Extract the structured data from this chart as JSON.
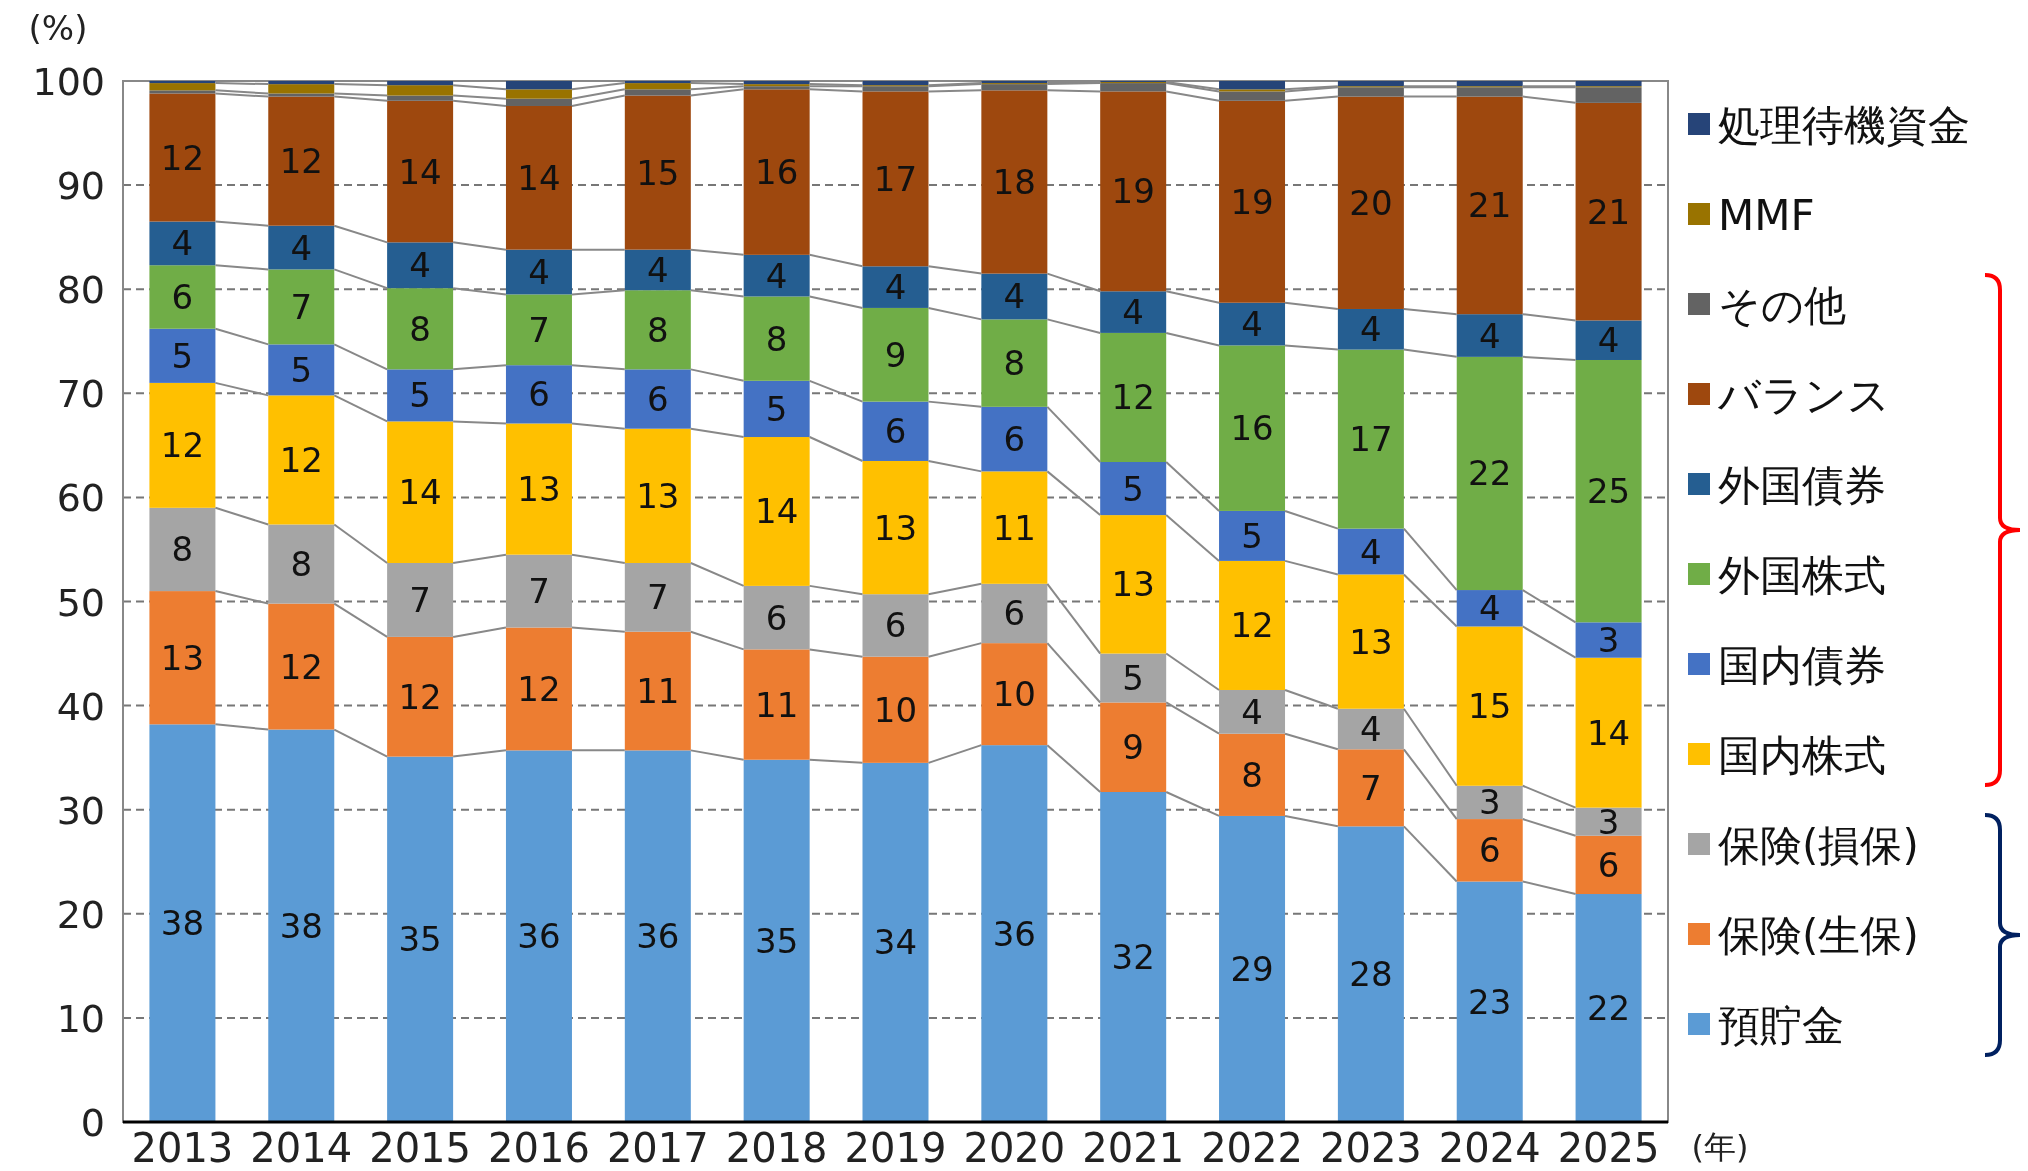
{
  "chart_data": {
    "type": "bar",
    "stacked": true,
    "ylabel": "(%)",
    "xlabel": "(年)",
    "ylim": [
      0,
      100
    ],
    "yticks": [
      0,
      10,
      20,
      30,
      40,
      50,
      60,
      70,
      80,
      90,
      100
    ],
    "grid": "y",
    "legend": "right",
    "categories": [
      "2013",
      "2014",
      "2015",
      "2016",
      "2017",
      "2018",
      "2019",
      "2020",
      "2021",
      "2022",
      "2023",
      "2024",
      "2025"
    ],
    "series": [
      {
        "name": "預貯金",
        "color": "#5b9bd5",
        "values": [
          38.2,
          37.7,
          35.1,
          35.7,
          35.7,
          34.8,
          34.5,
          36.2,
          31.7,
          29.4,
          28.4,
          23.1,
          21.9
        ],
        "value_labels": [
          "38",
          "38",
          "35",
          "36",
          "36",
          "35",
          "34",
          "36",
          "32",
          "29",
          "28",
          "23",
          "22"
        ]
      },
      {
        "name": "保険(生保)",
        "color": "#ed7d31",
        "values": [
          12.8,
          12.1,
          11.5,
          11.8,
          11.4,
          10.6,
          10.2,
          9.8,
          8.6,
          7.9,
          7.4,
          6.0,
          5.6
        ],
        "value_labels": [
          "13",
          "12",
          "12",
          "12",
          "11",
          "11",
          "10",
          "10",
          "9",
          "8",
          "7",
          "6",
          "6"
        ]
      },
      {
        "name": "保険(損保)",
        "color": "#a5a5a5",
        "values": [
          8.0,
          7.6,
          7.1,
          7.0,
          6.6,
          6.1,
          6.0,
          5.7,
          4.7,
          4.2,
          3.9,
          3.2,
          2.7
        ],
        "value_labels": [
          "8",
          "8",
          "7",
          "7",
          "7",
          "6",
          "6",
          "6",
          "5",
          "4",
          "4",
          "3",
          "3"
        ]
      },
      {
        "name": "国内株式",
        "color": "#ffc000",
        "values": [
          12.0,
          12.4,
          13.6,
          12.6,
          12.9,
          14.3,
          12.8,
          10.8,
          13.3,
          12.4,
          12.9,
          15.3,
          14.4
        ],
        "value_labels": [
          "12",
          "12",
          "14",
          "13",
          "13",
          "14",
          "13",
          "11",
          "13",
          "12",
          "13",
          "15",
          "14"
        ]
      },
      {
        "name": "国内債券",
        "color": "#4472c4",
        "values": [
          5.2,
          4.9,
          5.0,
          5.6,
          5.7,
          5.4,
          5.7,
          6.2,
          5.1,
          4.8,
          4.4,
          3.5,
          3.4
        ],
        "value_labels": [
          "5",
          "5",
          "5",
          "6",
          "6",
          "5",
          "6",
          "6",
          "5",
          "5",
          "4",
          "4",
          "3"
        ]
      },
      {
        "name": "外国株式",
        "color": "#70ad47",
        "values": [
          6.1,
          7.2,
          7.8,
          6.8,
          7.6,
          8.1,
          9.0,
          8.4,
          12.4,
          15.9,
          17.2,
          22.4,
          25.2
        ],
        "value_labels": [
          "6",
          "7",
          "8",
          "7",
          "8",
          "8",
          "9",
          "8",
          "12",
          "16",
          "17",
          "22",
          "25"
        ]
      },
      {
        "name": "外国債券",
        "color": "#255e91",
        "values": [
          4.2,
          4.2,
          4.4,
          4.3,
          3.9,
          4.0,
          4.0,
          4.4,
          4.0,
          4.1,
          3.9,
          4.1,
          3.8
        ],
        "value_labels": [
          "4",
          "4",
          "4",
          "4",
          "4",
          "4",
          "4",
          "4",
          "4",
          "4",
          "4",
          "4",
          "4"
        ]
      },
      {
        "name": "バランス",
        "color": "#9e480e",
        "values": [
          12.3,
          12.4,
          13.6,
          13.8,
          14.8,
          15.9,
          16.8,
          17.6,
          19.2,
          19.4,
          20.4,
          20.9,
          20.9
        ],
        "value_labels": [
          "12",
          "12",
          "14",
          "14",
          "15",
          "16",
          "17",
          "18",
          "19",
          "19",
          "20",
          "21",
          "21"
        ]
      },
      {
        "name": "その他",
        "color": "#636363",
        "values": [
          0.3,
          0.3,
          0.5,
          0.7,
          0.6,
          0.3,
          0.5,
          0.6,
          0.8,
          0.9,
          0.9,
          0.9,
          1.5
        ]
      },
      {
        "name": "MMF",
        "color": "#997300",
        "values": [
          0.7,
          0.9,
          1.0,
          0.9,
          0.6,
          0.2,
          0.1,
          0.1,
          0.1,
          0.2,
          0.1,
          0.1,
          0.1
        ]
      },
      {
        "name": "処理待機資金",
        "color": "#264478",
        "values": [
          0.2,
          0.3,
          0.4,
          0.8,
          0.2,
          0.3,
          0.4,
          0.2,
          0.1,
          0.8,
          0.5,
          0.5,
          0.5
        ]
      }
    ]
  }
}
